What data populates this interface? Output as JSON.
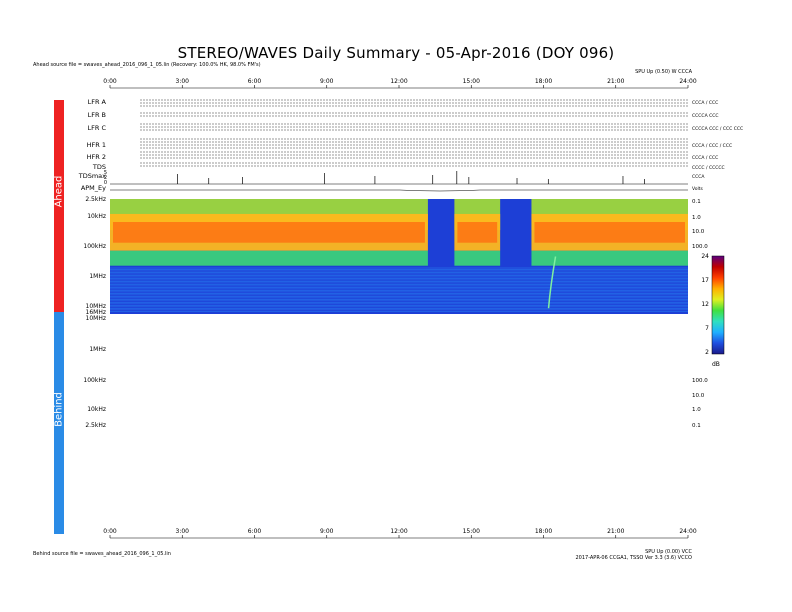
{
  "title": "STEREO/WAVES Daily Summary - 05-Apr-2016 (DOY 096)",
  "ahead_source": "Ahead source file = swaves_ahead_2016_096_1_05.lin (Recovery: 100.0% HK, 98.0% FM's)",
  "behind_source": "Behind source file = swaves_ahead_2016_096_1_05.lin",
  "top_right_note": "SPU Up (0.50) W CCCA",
  "bottom_right_note_1": "SPU Up (0.00) VCC",
  "bottom_right_note_2": "2017-APR-06 CCGA1, TSSO Ver 3.3 (3.6) VCCO",
  "time_ticks": [
    "0:00",
    "3:00",
    "6:00",
    "9:00",
    "12:00",
    "15:00",
    "18:00",
    "21:00",
    "24:00"
  ],
  "sidebar": {
    "ahead": "Ahead",
    "behind": "Behind",
    "ahead_color": "#ee2222",
    "behind_color": "#2a8be6"
  },
  "panels": [
    {
      "name": "LFR A",
      "right": "CCCA / CCC"
    },
    {
      "name": "LFR B",
      "right": "CCCCA CCC"
    },
    {
      "name": "LFR C",
      "right": "CCCCA CCC / CCC CCC"
    },
    {
      "name": "HFR 1",
      "right": "CCCA / CCC / CCC"
    },
    {
      "name": "HFR 2",
      "right": "CCCA / CCC"
    },
    {
      "name": "TDS",
      "right": "CCCC / CCCCC"
    },
    {
      "name": "TDSmax",
      "right": "CCCA"
    },
    {
      "name": "APM_Ey",
      "right": "Volts"
    }
  ],
  "tdsmax_ticks": [
    "5",
    "2",
    "0"
  ],
  "ahead_freq_ticks": [
    "2.5kHz",
    "10kHz",
    "100kHz",
    "1MHz",
    "10MHz",
    "16MHz"
  ],
  "behind_freq_ticks": [
    "10MHz",
    "1MHz",
    "100kHz",
    "10kHz",
    "2.5kHz"
  ],
  "ahead_right_ticks": [
    "0.1",
    "1.0",
    "10.0",
    "100.0"
  ],
  "behind_right_ticks": [
    "100.0",
    "10.0",
    "1.0",
    "0.1"
  ],
  "colorbar": {
    "ticks": [
      "24",
      "17",
      "12",
      "7",
      "2"
    ],
    "unit": "dB",
    "colors": [
      "#1a1a8a",
      "#1f4fe0",
      "#1fb0ff",
      "#2fe0c0",
      "#40e040",
      "#e0f020",
      "#ffb000",
      "#ff4000",
      "#c00000",
      "#5a0080"
    ]
  },
  "chart_data": {
    "type": "heatmap",
    "title": "STEREO/WAVES Daily Summary - 05-Apr-2016 (DOY 096)",
    "x_range_hours": [
      0,
      24
    ],
    "y_axis": "frequency (log)",
    "ahead_freq_range": [
      "2.5kHz",
      "16MHz"
    ],
    "intensity_unit": "dB",
    "intensity_range": [
      2,
      24
    ],
    "strong_emission_intervals_hours": [
      [
        0,
        13.2
      ],
      [
        14.3,
        16.2
      ],
      [
        17.5,
        24
      ]
    ],
    "type_iii_burst_hour": 18.5,
    "behind_data": "none"
  }
}
